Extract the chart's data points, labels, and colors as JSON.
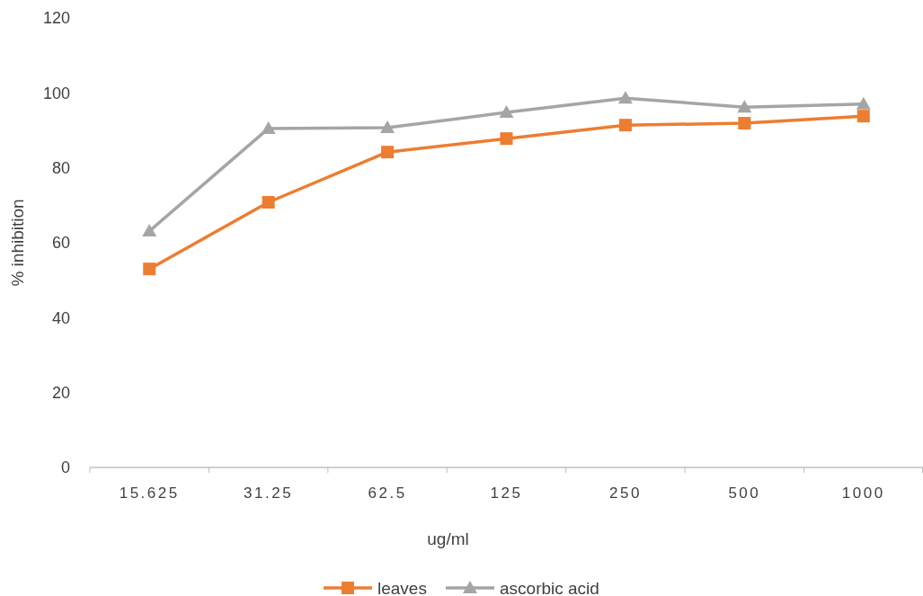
{
  "chart_data": {
    "type": "line",
    "xlabel": "ug/ml",
    "ylabel": "% inhibition",
    "categories": [
      "15.625",
      "31.25",
      "62.5",
      "125",
      "250",
      "500",
      "1000"
    ],
    "series": [
      {
        "name": "leaves",
        "color": "#ed7d31",
        "marker": "square",
        "values": [
          53.0,
          70.8,
          84.2,
          87.8,
          91.4,
          91.9,
          93.8
        ]
      },
      {
        "name": "ascorbic acid",
        "color": "#a5a5a5",
        "marker": "triangle",
        "values": [
          63.1,
          90.5,
          90.7,
          94.8,
          98.6,
          96.2,
          97.0
        ]
      }
    ],
    "ylim": [
      0,
      120
    ],
    "yticks": [
      0,
      20,
      40,
      60,
      80,
      100,
      120
    ],
    "grid": false,
    "legend": "bottom",
    "line_style": "solid"
  }
}
